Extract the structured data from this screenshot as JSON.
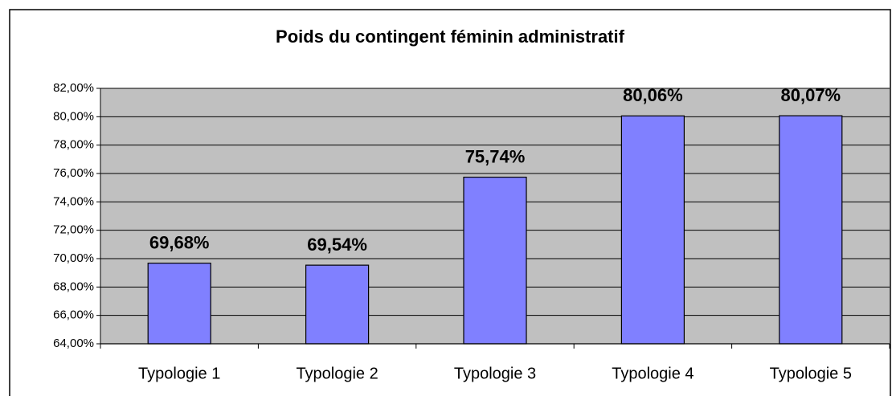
{
  "chart_data": {
    "type": "bar",
    "title": "Poids du contingent féminin administratif",
    "categories": [
      "Typologie 1",
      "Typologie 2",
      "Typologie 3",
      "Typologie 4",
      "Typologie 5"
    ],
    "values": [
      69.68,
      69.54,
      75.74,
      80.06,
      80.07
    ],
    "value_labels": [
      "69,68%",
      "69,54%",
      "75,74%",
      "80,06%",
      "80,07%"
    ],
    "color": "#8080ff",
    "ylim": [
      64,
      82
    ],
    "yticks": [
      {
        "value": 64,
        "label": "64,00%"
      },
      {
        "value": 66,
        "label": "66,00%"
      },
      {
        "value": 68,
        "label": "68,00%"
      },
      {
        "value": 70,
        "label": "70,00%"
      },
      {
        "value": 72,
        "label": "72,00%"
      },
      {
        "value": 74,
        "label": "74,00%"
      },
      {
        "value": 76,
        "label": "76,00%"
      },
      {
        "value": 78,
        "label": "78,00%"
      },
      {
        "value": 80,
        "label": "80,00%"
      },
      {
        "value": 82,
        "label": "82,00%"
      }
    ],
    "grid": true
  }
}
